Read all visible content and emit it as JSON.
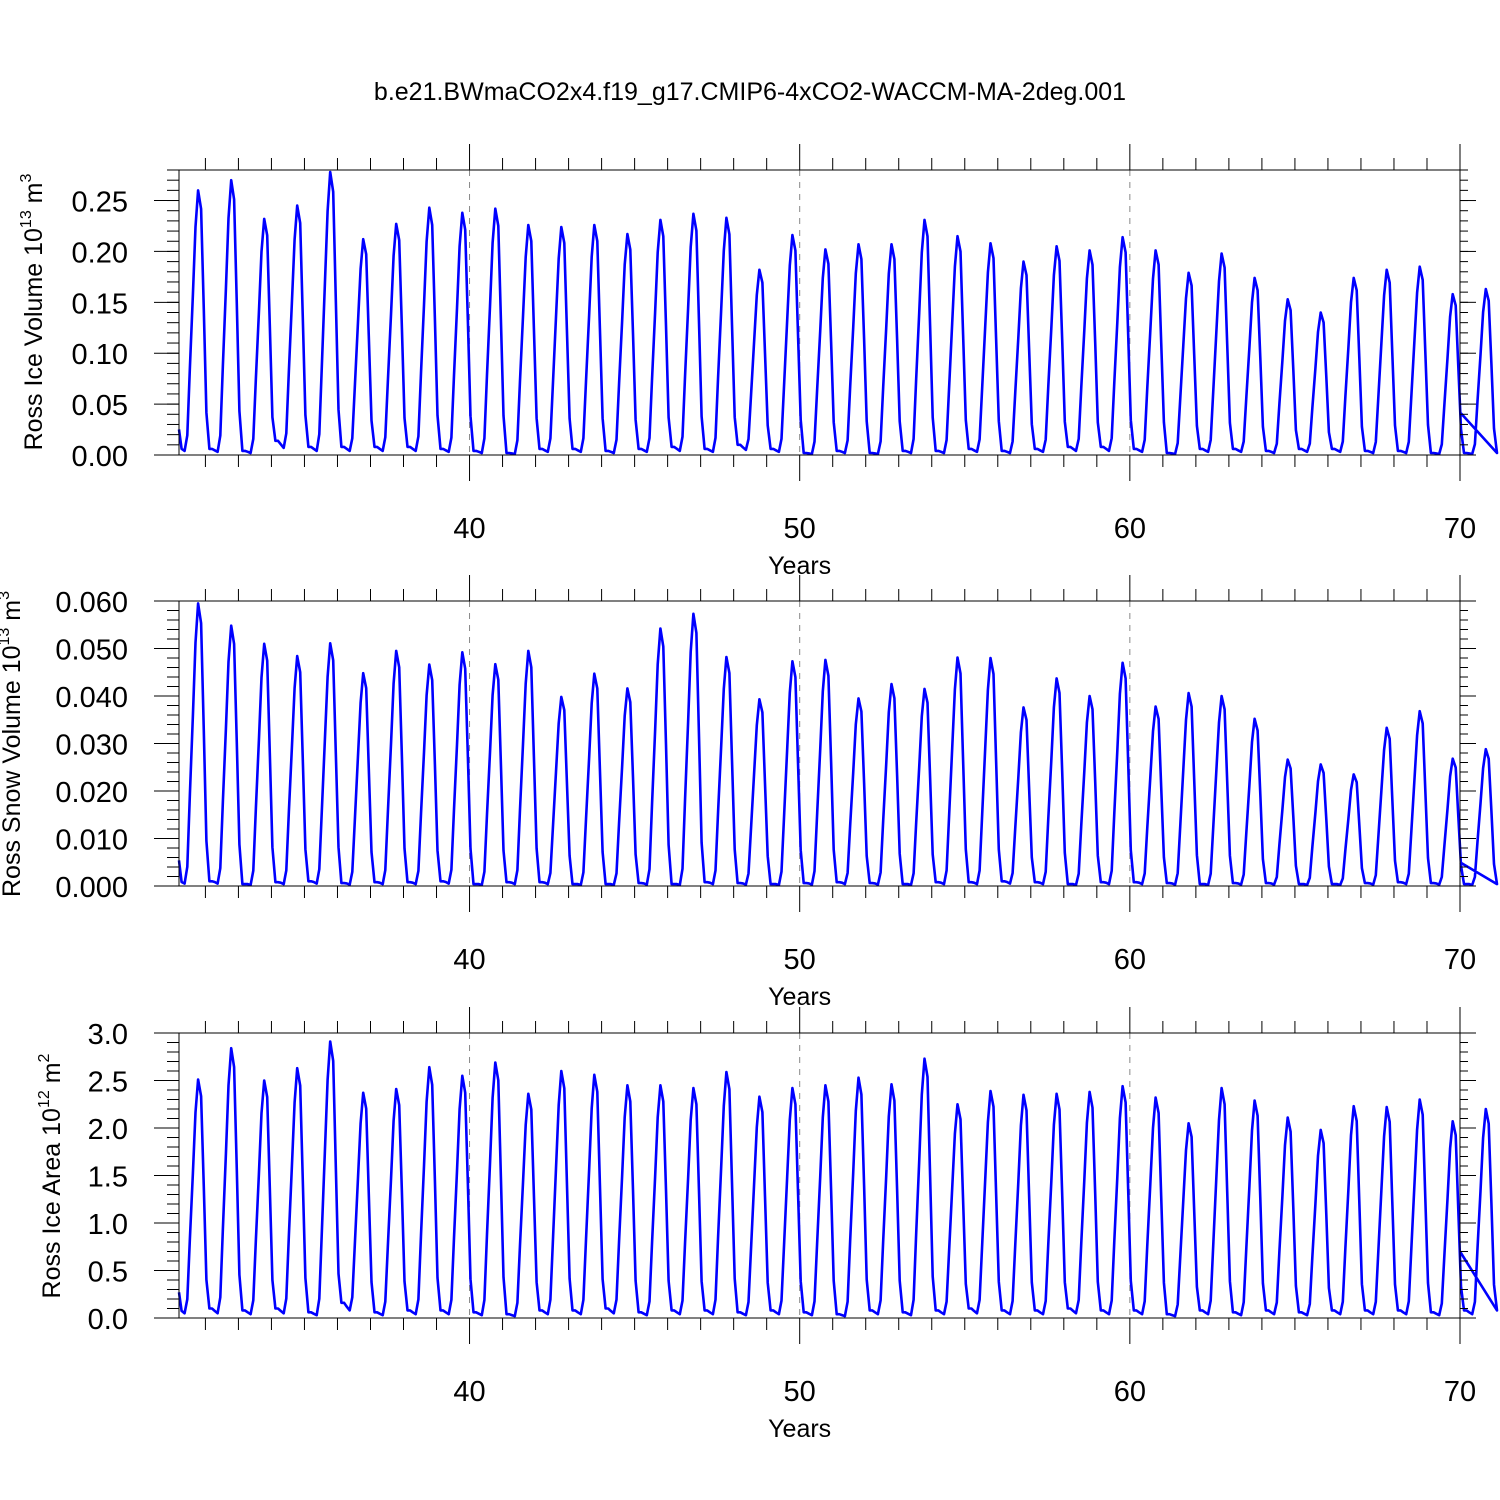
{
  "title": "b.e21.BWmaCO2x4.f19_g17.CMIP6-4xCO2-WACCM-MA-2deg.001",
  "colors": {
    "series": "#0000ff",
    "grid": "#888888",
    "frame": "#000000"
  },
  "chart_data": [
    {
      "type": "line",
      "title": "b.e21.BWmaCO2x4.f19_g17.CMIP6-4xCO2-WACCM-MA-2deg.001",
      "xlabel": "Years",
      "ylabel": "Ross Ice Volume 10",
      "ylabel_exp": "13",
      "ylabel_unit": " m",
      "ylabel_unit_exp": "3",
      "xlim": [
        31.2,
        70
      ],
      "ylim": [
        0,
        0.28
      ],
      "xticks": [
        40,
        50,
        60,
        70
      ],
      "xtick_labels": [
        "40",
        "50",
        "60",
        "70"
      ],
      "yticks": [
        0,
        0.05,
        0.1,
        0.15,
        0.2,
        0.25
      ],
      "ytick_labels": [
        "0.00",
        "0.05",
        "0.10",
        "0.15",
        "0.20",
        "0.25"
      ],
      "grid_x": [
        40,
        50,
        60
      ],
      "start_year": 31.2,
      "end_value": 0.042,
      "peaks": [
        0.26,
        0.27,
        0.232,
        0.245,
        0.278,
        0.212,
        0.227,
        0.243,
        0.238,
        0.242,
        0.226,
        0.224,
        0.226,
        0.217,
        0.231,
        0.237,
        0.233,
        0.182,
        0.216,
        0.202,
        0.207,
        0.207,
        0.231,
        0.215,
        0.208,
        0.19,
        0.205,
        0.201,
        0.214,
        0.201,
        0.179,
        0.198,
        0.174,
        0.153,
        0.14,
        0.174,
        0.182,
        0.185,
        0.158,
        0.163
      ],
      "troughs": [
        0.004,
        0.003,
        0.002,
        0.007,
        0.004,
        0.004,
        0.004,
        0.004,
        0.003,
        0.002,
        0.001,
        0.003,
        0.003,
        0.002,
        0.003,
        0.004,
        0.003,
        0.005,
        0.003,
        0.001,
        0.002,
        0.001,
        0.002,
        0.002,
        0.003,
        0.002,
        0.003,
        0.004,
        0.004,
        0.003,
        0.001,
        0.003,
        0.003,
        0.002,
        0.003,
        0.003,
        0.002,
        0.002,
        0.001,
        0.001
      ]
    },
    {
      "type": "line",
      "xlabel": "Years",
      "ylabel": "Ross Snow Volume 10",
      "ylabel_exp": "13",
      "ylabel_unit": " m",
      "ylabel_unit_exp": "3",
      "xlim": [
        31.2,
        70
      ],
      "ylim": [
        0,
        0.06
      ],
      "xticks": [
        40,
        50,
        60,
        70
      ],
      "xtick_labels": [
        "40",
        "50",
        "60",
        "70"
      ],
      "yticks": [
        0,
        0.01,
        0.02,
        0.03,
        0.04,
        0.05,
        0.06
      ],
      "ytick_labels": [
        "0.000",
        "0.010",
        "0.020",
        "0.030",
        "0.040",
        "0.050",
        "0.060"
      ],
      "grid_x": [
        40,
        50,
        60
      ],
      "start_year": 31.2,
      "end_value": 0.005,
      "peaks": [
        0.0595,
        0.0548,
        0.051,
        0.0484,
        0.0511,
        0.0448,
        0.0495,
        0.0466,
        0.0492,
        0.0467,
        0.0495,
        0.0398,
        0.0447,
        0.0416,
        0.0542,
        0.0573,
        0.0482,
        0.0393,
        0.0473,
        0.0476,
        0.0395,
        0.0425,
        0.0415,
        0.0481,
        0.048,
        0.0376,
        0.0437,
        0.04,
        0.047,
        0.0378,
        0.0406,
        0.04,
        0.0352,
        0.0266,
        0.0256,
        0.0235,
        0.0333,
        0.0368,
        0.0268,
        0.0288
      ],
      "troughs": [
        0.0005,
        0.0005,
        0.0002,
        0.0004,
        0.0005,
        0.0003,
        0.0004,
        0.0004,
        0.0005,
        0.0002,
        0.0004,
        0.0004,
        0.0002,
        0.0002,
        0.0003,
        0.0002,
        0.0004,
        0.0003,
        0.0002,
        0.0003,
        0.0004,
        0.0003,
        0.0002,
        0.0004,
        0.0004,
        0.0005,
        0.0004,
        0.0002,
        0.0004,
        0.0004,
        0.0003,
        0.0002,
        0.0003,
        0.0003,
        0.0002,
        0.0002,
        0.0003,
        0.0004,
        0.0003,
        0.0002
      ]
    },
    {
      "type": "line",
      "xlabel": "Years",
      "ylabel": "Ross Ice Area 10",
      "ylabel_exp": "12",
      "ylabel_unit": " m",
      "ylabel_unit_exp": "2",
      "xlim": [
        31.2,
        70
      ],
      "ylim": [
        0,
        3.0
      ],
      "xticks": [
        40,
        50,
        60,
        70
      ],
      "xtick_labels": [
        "40",
        "50",
        "60",
        "70"
      ],
      "yticks": [
        0,
        0.5,
        1.0,
        1.5,
        2.0,
        2.5,
        3.0
      ],
      "ytick_labels": [
        "0.0",
        "0.5",
        "1.0",
        "1.5",
        "2.0",
        "2.5",
        "3.0"
      ],
      "grid_x": [
        40,
        50,
        60
      ],
      "start_year": 31.2,
      "end_value": 0.7,
      "peaks": [
        2.51,
        2.84,
        2.5,
        2.63,
        2.91,
        2.37,
        2.41,
        2.64,
        2.55,
        2.69,
        2.36,
        2.6,
        2.56,
        2.45,
        2.45,
        2.42,
        2.59,
        2.33,
        2.42,
        2.45,
        2.53,
        2.46,
        2.73,
        2.25,
        2.39,
        2.35,
        2.36,
        2.38,
        2.44,
        2.32,
        2.05,
        2.42,
        2.29,
        2.11,
        1.98,
        2.23,
        2.22,
        2.3,
        2.07,
        2.2
      ],
      "troughs": [
        0.05,
        0.05,
        0.04,
        0.05,
        0.03,
        0.08,
        0.03,
        0.04,
        0.04,
        0.03,
        0.02,
        0.04,
        0.04,
        0.05,
        0.03,
        0.04,
        0.04,
        0.03,
        0.04,
        0.03,
        0.02,
        0.04,
        0.03,
        0.04,
        0.05,
        0.04,
        0.04,
        0.05,
        0.04,
        0.04,
        0.02,
        0.04,
        0.03,
        0.04,
        0.03,
        0.04,
        0.04,
        0.04,
        0.03,
        0.04
      ]
    }
  ]
}
